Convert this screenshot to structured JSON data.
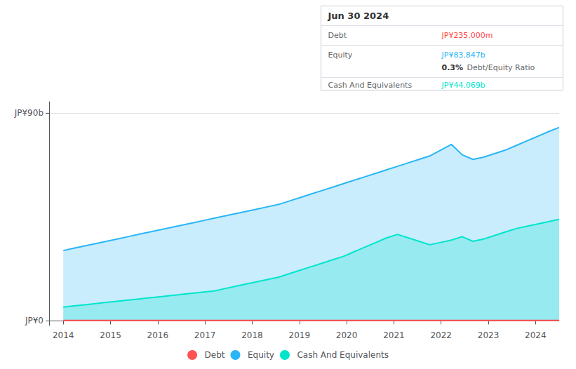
{
  "chart_data": {
    "type": "line",
    "title": "Jun 30 2024",
    "annotations": [
      {
        "label": "Debt",
        "text": "JP¥235.000m",
        "color": "#ff4444"
      },
      {
        "label": "Equity",
        "text": "JP¥83.847b",
        "color": "#29b6f6",
        "note_bold": "0.3%",
        "note": "Debt/Equity Ratio"
      },
      {
        "label": "Cash And Equivalents",
        "text": "JP¥44.069b",
        "color": "#00e5cc"
      }
    ],
    "x": [
      2014,
      2014.228261,
      2014.456522,
      2014.684783,
      2014.913043,
      2015.141304,
      2015.369565,
      2015.597826,
      2015.826087,
      2016.054348,
      2016.282609,
      2016.51087,
      2016.73913,
      2016.967391,
      2017.195652,
      2017.423913,
      2017.652174,
      2017.880435,
      2018.108696,
      2018.336957,
      2018.565217,
      2018.793478,
      2019.021739,
      2019.25,
      2019.478261,
      2019.706522,
      2019.934783,
      2020.163043,
      2020.391304,
      2020.619565,
      2020.847826,
      2021.076087,
      2021.304348,
      2021.532609,
      2021.76087,
      2021.98913,
      2022.217391,
      2022.445652,
      2022.673913,
      2022.902174,
      2023.130435,
      2023.358696,
      2023.586957,
      2023.815217,
      2024.043478,
      2024.271739,
      2024.5
    ],
    "series": [
      {
        "name": "Debt",
        "color": "#ff5252",
        "type": "line",
        "values": [
          0.235,
          0.235,
          0.235,
          0.235,
          0.235,
          0.235,
          0.235,
          0.235,
          0.235,
          0.235,
          0.235,
          0.235,
          0.235,
          0.235,
          0.235,
          0.235,
          0.235,
          0.235,
          0.235,
          0.235,
          0.235,
          0.235,
          0.235,
          0.235,
          0.235,
          0.235,
          0.235,
          0.235,
          0.235,
          0.235,
          0.235,
          0.235,
          0.235,
          0.235,
          0.235,
          0.235,
          0.235,
          0.235,
          0.235,
          0.235,
          0.235,
          0.235,
          0.235,
          0.235,
          0.235,
          0.235,
          0.235
        ]
      },
      {
        "name": "Equity",
        "color": "#29b6f6",
        "type": "area",
        "values": [
          30.5,
          31.5,
          32.5,
          33.5,
          34.5,
          35.5,
          36.5,
          37.5,
          38.5,
          39.5,
          40.5,
          41.5,
          42.5,
          43.5,
          44.5,
          45.5,
          46.5,
          47.5,
          48.5,
          49.5,
          50.5,
          52.0,
          53.5,
          55.0,
          56.5,
          58.0,
          59.5,
          61.0,
          62.5,
          64.0,
          65.5,
          67.0,
          68.5,
          70.0,
          71.5,
          74.0,
          76.5,
          72.0,
          70.0,
          71.0,
          72.5,
          74.0,
          76.0,
          78.0,
          80.0,
          82.0,
          83.847
        ]
      },
      {
        "name": "Cash And Equivalents",
        "color": "#00e5cc",
        "type": "area",
        "values": [
          6.0,
          6.5,
          7.0,
          7.5,
          8.0,
          8.5,
          9.0,
          9.5,
          10.0,
          10.5,
          11.0,
          11.5,
          12.0,
          12.5,
          13.0,
          14.0,
          15.0,
          16.0,
          17.0,
          18.0,
          19.0,
          20.5,
          22.0,
          23.5,
          25.0,
          26.5,
          28.0,
          30.0,
          32.0,
          34.0,
          36.0,
          37.5,
          36.0,
          34.5,
          33.0,
          34.0,
          35.0,
          36.5,
          34.5,
          35.5,
          37.0,
          38.5,
          40.0,
          41.0,
          42.0,
          43.0,
          44.069
        ]
      }
    ],
    "xlim": [
      2013.7,
      2024.5
    ],
    "xticks": [
      2014,
      2015,
      2016,
      2017,
      2018,
      2019,
      2020,
      2021,
      2022,
      2023,
      2024
    ],
    "ylim": [
      -2,
      95
    ],
    "yticks": [
      {
        "value": 0,
        "label": "JP¥0"
      },
      {
        "value": 90,
        "label": "JP¥90b"
      }
    ],
    "grid": true,
    "legend": "bottom"
  }
}
